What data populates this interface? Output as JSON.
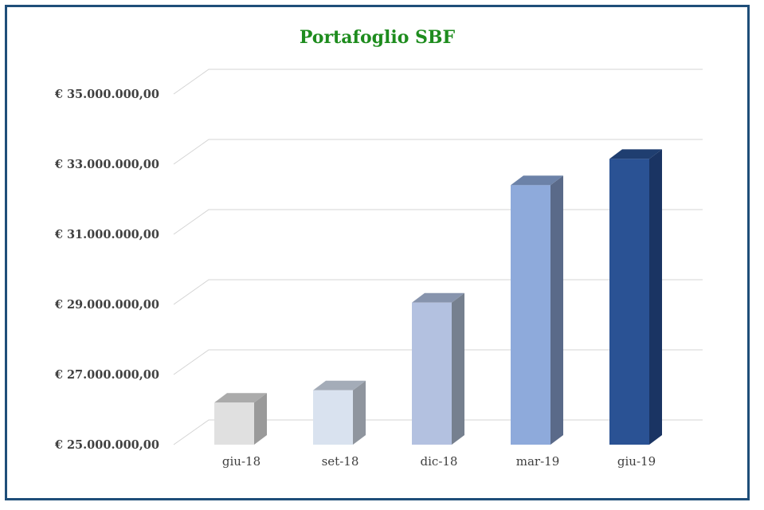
{
  "chart_data": {
    "type": "bar",
    "title": "Portafoglio SBF",
    "xlabel": "",
    "ylabel": "",
    "categories": [
      "giu-18",
      "set-18",
      "dic-18",
      "mar-19",
      "giu-19"
    ],
    "values": [
      26200000,
      26550000,
      29050000,
      32400000,
      33150000
    ],
    "ylim": [
      25000000,
      35000000
    ],
    "y_ticks": [
      25000000,
      27000000,
      29000000,
      31000000,
      33000000,
      35000000
    ],
    "y_tick_labels": [
      "€ 25.000.000,00",
      "€ 27.000.000,00",
      "€ 29.000.000,00",
      "€ 31.000.000,00",
      "€ 33.000.000,00",
      "€ 35.000.000,00"
    ],
    "grid": true,
    "style": "3d-column",
    "bar_colors": [
      {
        "front": "#e0e0e0",
        "side": "#9a9a9a",
        "top": "#ababab"
      },
      {
        "front": "#d9e2ef",
        "side": "#8f959e",
        "top": "#a4acb8"
      },
      {
        "front": "#b3c1e0",
        "side": "#76808f",
        "top": "#8794ad"
      },
      {
        "front": "#8eaadb",
        "side": "#5a6a89",
        "top": "#6c82a8"
      },
      {
        "front": "#2a5294",
        "side": "#1a3463",
        "top": "#1f3e70"
      }
    ]
  }
}
